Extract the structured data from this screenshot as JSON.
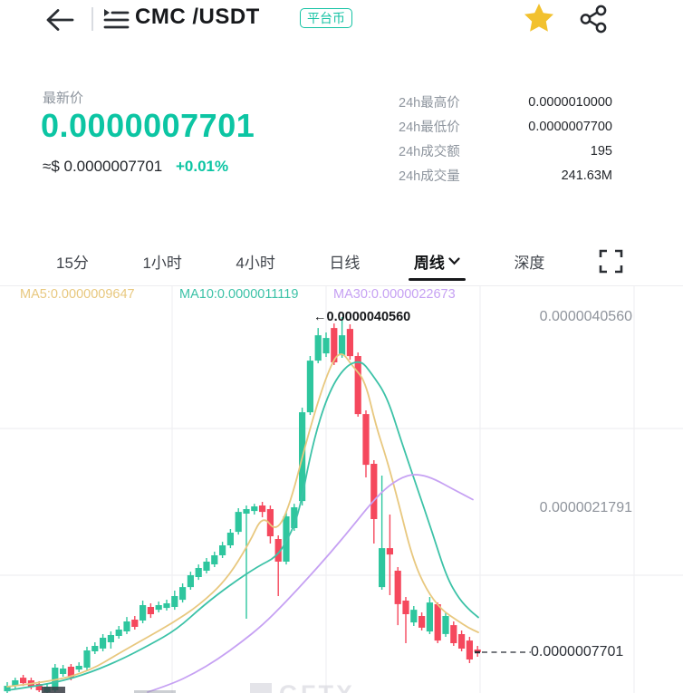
{
  "header": {
    "title": "CMC /USDT",
    "badge": "平台币",
    "back_icon": "arrow-left",
    "pairs_list_icon": "pairs-list",
    "favorite_icon": "star-filled",
    "share_icon": "share-nodes"
  },
  "price_panel": {
    "label": "最新价",
    "price": "0.0000007701",
    "fiat_approx": "≈$ 0.0000007701",
    "change_percent": "+0.01%"
  },
  "stats": [
    {
      "label": "24h最高价",
      "value": "0.0000010000"
    },
    {
      "label": "24h最低价",
      "value": "0.0000007700"
    },
    {
      "label": "24h成交额",
      "value": "195"
    },
    {
      "label": "24h成交量",
      "value": "241.63M"
    }
  ],
  "tabs": {
    "items": [
      {
        "label": "15分",
        "active": false,
        "has_chevron": false
      },
      {
        "label": "1小时",
        "active": false,
        "has_chevron": false
      },
      {
        "label": "4小时",
        "active": false,
        "has_chevron": false
      },
      {
        "label": "日线",
        "active": false,
        "has_chevron": false
      },
      {
        "label": "周线",
        "active": true,
        "has_chevron": true
      },
      {
        "label": "深度",
        "active": false,
        "has_chevron": false
      }
    ],
    "fullscreen_icon": "fullscreen-corners"
  },
  "watermark": "GFTX",
  "colors": {
    "accent_teal": "#0cc5a3",
    "candle_up": "#2ec69e",
    "candle_down": "#f5485d",
    "ma5": "#e8c87f",
    "ma10": "#3cc2a7",
    "ma30": "#c6a1f3",
    "grid": "#efeff2",
    "star_yellow": "#f2c12e"
  },
  "chart_data": {
    "type": "candlestick",
    "interval": "周线",
    "price_unit_exponent": -10,
    "x_unit": "px (no time labels visible)",
    "ylim": {
      "top_value": 42337,
      "bottom_value": 3705
    },
    "grid": {
      "vertical_x": [
        190,
        360,
        530,
        700
      ],
      "horizontal_y": [
        473,
        635
      ]
    },
    "moving_averages": [
      {
        "name": "MA5",
        "current": "0.0000009647",
        "color": "#e8c87f",
        "points": [
          [
            8,
            4330
          ],
          [
            60,
            4860
          ],
          [
            100,
            5930
          ],
          [
            130,
            7520
          ],
          [
            160,
            9030
          ],
          [
            190,
            10540
          ],
          [
            220,
            12320
          ],
          [
            250,
            14810
          ],
          [
            275,
            18360
          ],
          [
            290,
            21200
          ],
          [
            305,
            19420
          ],
          [
            320,
            22090
          ],
          [
            340,
            29010
          ],
          [
            360,
            34790
          ],
          [
            375,
            37450
          ],
          [
            390,
            35670
          ],
          [
            403,
            34340
          ],
          [
            415,
            29900
          ],
          [
            427,
            26620
          ],
          [
            440,
            22350
          ],
          [
            455,
            17030
          ],
          [
            470,
            13920
          ],
          [
            487,
            11870
          ],
          [
            505,
            10810
          ],
          [
            517,
            10100
          ],
          [
            528,
            9650
          ]
        ]
      },
      {
        "name": "MA10",
        "current": "0.0000011119",
        "color": "#3cc2a7",
        "points": [
          [
            8,
            3970
          ],
          [
            50,
            4500
          ],
          [
            90,
            5390
          ],
          [
            130,
            6810
          ],
          [
            165,
            8410
          ],
          [
            195,
            9920
          ],
          [
            225,
            12320
          ],
          [
            255,
            14360
          ],
          [
            285,
            16140
          ],
          [
            305,
            17030
          ],
          [
            318,
            18800
          ],
          [
            330,
            21290
          ],
          [
            345,
            28130
          ],
          [
            362,
            33010
          ],
          [
            380,
            35670
          ],
          [
            398,
            36380
          ],
          [
            410,
            35050
          ],
          [
            427,
            32830
          ],
          [
            443,
            28390
          ],
          [
            460,
            23950
          ],
          [
            477,
            19510
          ],
          [
            493,
            15070
          ],
          [
            507,
            12900
          ],
          [
            520,
            11700
          ],
          [
            528,
            11120
          ]
        ]
      },
      {
        "name": "MA30",
        "current": "0.0000022673",
        "color": "#c6a1f3",
        "points": [
          [
            163,
            3790
          ],
          [
            190,
            4590
          ],
          [
            215,
            5660
          ],
          [
            240,
            6990
          ],
          [
            265,
            8590
          ],
          [
            290,
            10370
          ],
          [
            315,
            12590
          ],
          [
            340,
            14980
          ],
          [
            365,
            17470
          ],
          [
            390,
            20130
          ],
          [
            410,
            22350
          ],
          [
            430,
            24130
          ],
          [
            450,
            25110
          ],
          [
            465,
            25110
          ],
          [
            480,
            24660
          ],
          [
            500,
            23690
          ],
          [
            522,
            22670
          ]
        ]
      }
    ],
    "candles": [
      [
        8,
        3880,
        4770,
        3700,
        4410
      ],
      [
        16.8,
        4410,
        5210,
        4150,
        4950
      ],
      [
        25.6,
        5210,
        5480,
        4410,
        4680
      ],
      [
        34.4,
        4950,
        5210,
        4060,
        4330
      ],
      [
        43.2,
        4590,
        4860,
        3790,
        3970
      ],
      [
        52,
        3790,
        4680,
        3700,
        4330
      ],
      [
        60.8,
        3970,
        6550,
        3790,
        6190
      ],
      [
        69.6,
        5570,
        6460,
        5300,
        6100
      ],
      [
        78.4,
        6280,
        6550,
        4950,
        5210
      ],
      [
        87.2,
        6010,
        6720,
        5750,
        6370
      ],
      [
        96,
        6190,
        8230,
        5930,
        7880
      ],
      [
        104.8,
        7790,
        8680,
        7520,
        8320
      ],
      [
        113.6,
        8060,
        9480,
        7790,
        9120
      ],
      [
        122.4,
        8680,
        9740,
        8060,
        9390
      ],
      [
        131.2,
        9300,
        10280,
        9030,
        9920
      ],
      [
        140,
        9740,
        11160,
        9480,
        10720
      ],
      [
        148.8,
        10900,
        11250,
        9920,
        10190
      ],
      [
        157.6,
        10810,
        12760,
        10540,
        12320
      ],
      [
        166.4,
        12140,
        12500,
        11070,
        11430
      ],
      [
        175.2,
        11870,
        12670,
        11610,
        12320
      ],
      [
        184,
        12050,
        12850,
        11790,
        12500
      ],
      [
        192.8,
        12140,
        13740,
        11870,
        13210
      ],
      [
        201.6,
        12850,
        14450,
        12580,
        14090
      ],
      [
        210.4,
        14090,
        15600,
        13830,
        15250
      ],
      [
        219.2,
        15070,
        16310,
        14800,
        15960
      ],
      [
        228,
        15690,
        16940,
        15430,
        16580
      ],
      [
        236.8,
        16310,
        17560,
        16050,
        17200
      ],
      [
        245.6,
        17200,
        18530,
        16940,
        18180
      ],
      [
        254.4,
        18180,
        19780,
        17910,
        19420
      ],
      [
        263.2,
        19510,
        21820,
        19240,
        21460
      ],
      [
        272,
        21290,
        22090,
        10990,
        21730
      ],
      [
        280.8,
        21550,
        22260,
        21200,
        22000
      ],
      [
        289.6,
        22090,
        22440,
        20930,
        21460
      ],
      [
        298.4,
        21730,
        22090,
        18360,
        19070
      ],
      [
        307.2,
        18800,
        19160,
        13210,
        16580
      ],
      [
        316,
        16580,
        21460,
        16310,
        21020
      ],
      [
        324.8,
        19870,
        22260,
        19600,
        21910
      ],
      [
        333.6,
        22530,
        31680,
        22090,
        31230
      ],
      [
        342.4,
        31230,
        36740,
        30970,
        36290
      ],
      [
        351.2,
        36290,
        39490,
        36030,
        38780
      ],
      [
        360,
        37000,
        39050,
        36650,
        38510
      ],
      [
        368.8,
        39490,
        39930,
        35850,
        36120
      ],
      [
        377.6,
        36830,
        40560,
        36560,
        38780
      ],
      [
        386.4,
        39400,
        39850,
        36380,
        36740
      ],
      [
        395.2,
        36740,
        37090,
        30790,
        31050
      ],
      [
        404,
        31050,
        31410,
        24840,
        26080
      ],
      [
        412.8,
        26170,
        26530,
        18360,
        20750
      ],
      [
        421.6,
        14090,
        25020,
        13830,
        17910
      ],
      [
        430.4,
        17910,
        21200,
        13300,
        17290
      ],
      [
        439.2,
        15690,
        16050,
        10360,
        12410
      ],
      [
        448,
        12760,
        13120,
        8590,
        11430
      ],
      [
        456.8,
        10630,
        12230,
        10280,
        11870
      ],
      [
        465.6,
        11250,
        11610,
        9830,
        10100
      ],
      [
        474.4,
        9740,
        13120,
        9480,
        12580
      ],
      [
        483.2,
        12410,
        12580,
        8590,
        8850
      ],
      [
        492,
        9480,
        11610,
        9210,
        11250
      ],
      [
        500.8,
        10360,
        10720,
        8320,
        8590
      ],
      [
        509.6,
        9480,
        9830,
        7790,
        8060
      ],
      [
        518.4,
        8850,
        9210,
        6640,
        6990
      ],
      [
        527.2,
        7970,
        8320,
        7260,
        7700
      ]
    ],
    "max_price_annotation": {
      "arrow": "←",
      "text": "0.0000040560",
      "value": 40560
    },
    "right_axis_labels": [
      {
        "text": "0.0000040560",
        "value": 40560
      },
      {
        "text": "0.0000021791",
        "value": 21791
      }
    ],
    "last_price_line": {
      "text": "0.0000007701",
      "value": 7700
    }
  }
}
